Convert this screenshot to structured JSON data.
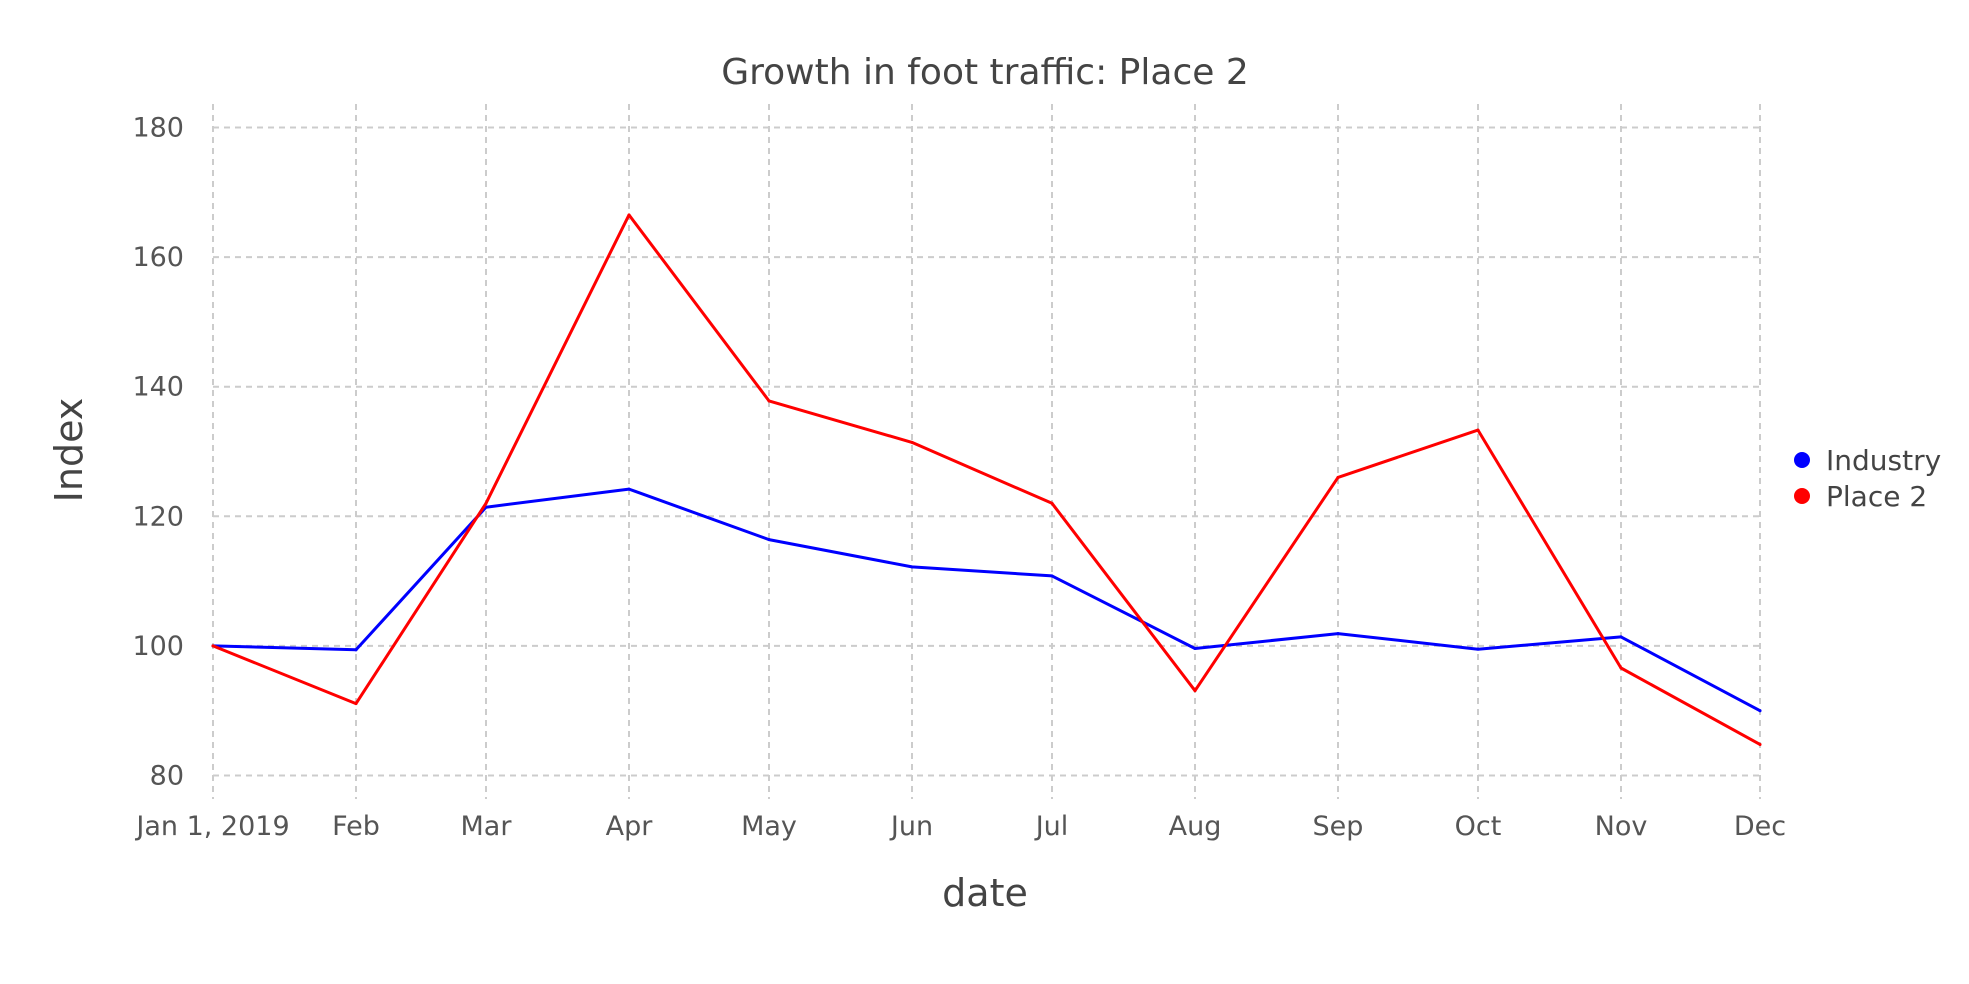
{
  "chart_data": {
    "type": "line",
    "title": "Growth in foot traffic: Place 2",
    "xlabel": "date",
    "ylabel": "Index",
    "x": [
      "2019-01-01",
      "2019-02-01",
      "2019-03-01",
      "2019-04-01",
      "2019-05-01",
      "2019-06-01",
      "2019-07-01",
      "2019-08-01",
      "2019-09-01",
      "2019-10-01",
      "2019-11-01",
      "2019-12-01"
    ],
    "x_tick_labels": [
      "Jan 1, 2019",
      "Feb",
      "Mar",
      "Apr",
      "May",
      "Jun",
      "Jul",
      "Aug",
      "Sep",
      "Oct",
      "Nov",
      "Dec"
    ],
    "y_ticks": [
      80,
      100,
      120,
      140,
      160,
      180
    ],
    "ylim": [
      77,
      183
    ],
    "grid": true,
    "legend_position": "right",
    "series": [
      {
        "name": "Industry",
        "color": "#0000ff",
        "values": [
          100,
          99.4,
          121.4,
          124.2,
          116.4,
          112.2,
          110.8,
          99.6,
          101.9,
          99.5,
          101.4,
          90
        ]
      },
      {
        "name": "Place 2",
        "color": "#ff0000",
        "values": [
          100,
          91.1,
          122,
          166.5,
          137.8,
          131.4,
          122,
          93.1,
          126,
          133.3,
          96.6,
          84.8
        ]
      }
    ]
  }
}
